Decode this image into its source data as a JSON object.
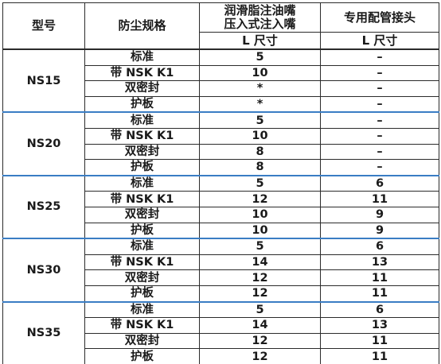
{
  "headers": {
    "model": "型号",
    "dust_spec": "防尘规格",
    "grease_nipple_line1": "润滑脂注油嘴",
    "grease_nipple_line2": "压入式注入嘴",
    "grease_nipple_unit": "L 尺寸",
    "fitting": "专用配管接头",
    "fitting_unit": "L 尺寸"
  },
  "groups": [
    {
      "model": "NS15",
      "rows": [
        {
          "spec": "标准",
          "l_nipple": "5",
          "l_fitting": "–"
        },
        {
          "spec": "带 NSK K1",
          "l_nipple": "10",
          "l_fitting": "–"
        },
        {
          "spec": "双密封",
          "l_nipple": "*",
          "l_fitting": "–"
        },
        {
          "spec": "护板",
          "l_nipple": "*",
          "l_fitting": "–"
        }
      ]
    },
    {
      "model": "NS20",
      "rows": [
        {
          "spec": "标准",
          "l_nipple": "5",
          "l_fitting": "–"
        },
        {
          "spec": "带 NSK K1",
          "l_nipple": "10",
          "l_fitting": "–"
        },
        {
          "spec": "双密封",
          "l_nipple": "8",
          "l_fitting": "–"
        },
        {
          "spec": "护板",
          "l_nipple": "8",
          "l_fitting": "–"
        }
      ]
    },
    {
      "model": "NS25",
      "rows": [
        {
          "spec": "标准",
          "l_nipple": "5",
          "l_fitting": "6"
        },
        {
          "spec": "带 NSK K1",
          "l_nipple": "12",
          "l_fitting": "11"
        },
        {
          "spec": "双密封",
          "l_nipple": "10",
          "l_fitting": "9"
        },
        {
          "spec": "护板",
          "l_nipple": "10",
          "l_fitting": "9"
        }
      ]
    },
    {
      "model": "NS30",
      "rows": [
        {
          "spec": "标准",
          "l_nipple": "5",
          "l_fitting": "6"
        },
        {
          "spec": "带 NSK K1",
          "l_nipple": "14",
          "l_fitting": "13"
        },
        {
          "spec": "双密封",
          "l_nipple": "12",
          "l_fitting": "11"
        },
        {
          "spec": "护板",
          "l_nipple": "12",
          "l_fitting": "11"
        }
      ]
    },
    {
      "model": "NS35",
      "rows": [
        {
          "spec": "标准",
          "l_nipple": "5",
          "l_fitting": "6"
        },
        {
          "spec": "带 NSK K1",
          "l_nipple": "14",
          "l_fitting": "13"
        },
        {
          "spec": "双密封",
          "l_nipple": "12",
          "l_fitting": "11"
        },
        {
          "spec": "护板",
          "l_nipple": "12",
          "l_fitting": "11"
        }
      ]
    }
  ]
}
